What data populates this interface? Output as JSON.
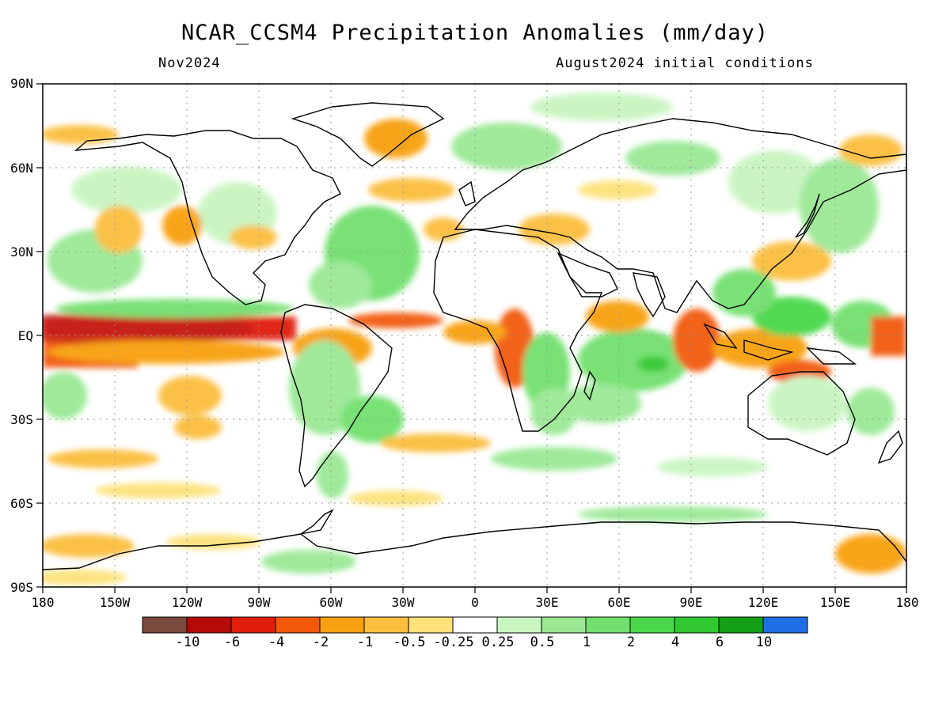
{
  "title": "NCAR_CCSM4 Precipitation Anomalies (mm/day)",
  "subtitle_left": "Nov2024",
  "subtitle_right": "August2024 initial conditions",
  "lat_labels": [
    "90N",
    "60N",
    "30N",
    "EQ",
    "30S",
    "60S",
    "90S"
  ],
  "lon_labels": [
    "180",
    "150W",
    "120W",
    "90W",
    "60W",
    "30W",
    "0",
    "30E",
    "60E",
    "90E",
    "120E",
    "150E",
    "180"
  ],
  "colorbar": {
    "colors": [
      "#7a4a3e",
      "#b40a0a",
      "#e01e0a",
      "#f25a0a",
      "#f8a00f",
      "#fbbe3c",
      "#fde27a",
      "#ffffff",
      "#c8f5c0",
      "#9ae894",
      "#72e06e",
      "#4ad84a",
      "#32c832",
      "#14a014",
      "#1e6ee6"
    ],
    "labels": [
      "-10",
      "-6",
      "-4",
      "-2",
      "-1",
      "-0.5",
      "-0.25",
      "0.25",
      "0.5",
      "1",
      "2",
      "4",
      "6",
      "10"
    ]
  }
}
